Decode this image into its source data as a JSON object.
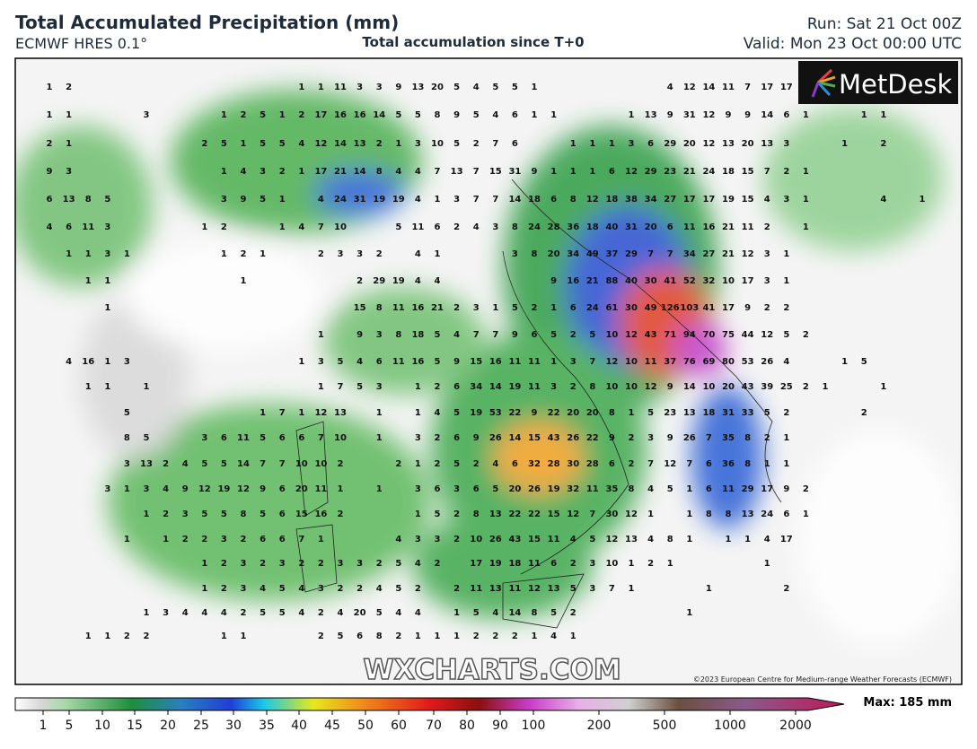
{
  "header": {
    "title": "Total Accumulated Precipitation (mm)",
    "model": "ECMWF HRES 0.1°",
    "subtitle": "Total accumulation since T+0",
    "run": "Run: Sat 21 Oct 00Z",
    "valid": "Valid: Mon 23 Oct 00:00 UTC"
  },
  "logo": "MetDesk",
  "watermark": "WXCHARTS.COM",
  "copyright": "©2023 European Centre for Medium-range Weather Forecasts (ECMWF)",
  "max_label": "Max: 185 mm",
  "colorbar": {
    "ticks": [
      1,
      5,
      10,
      15,
      20,
      25,
      30,
      35,
      40,
      45,
      50,
      60,
      70,
      80,
      90,
      100,
      200,
      500,
      1000,
      2000
    ]
  },
  "map_values": {
    "rows": [
      [
        1,
        2,
        null,
        null,
        null,
        null,
        null,
        null,
        null,
        null,
        null,
        null,
        null,
        1,
        1,
        11,
        3,
        3,
        9,
        13,
        20,
        5,
        4,
        5,
        5,
        1,
        null,
        null,
        null,
        null,
        null,
        null,
        4,
        12,
        14,
        11,
        7,
        17,
        17
      ],
      [
        1,
        1,
        null,
        null,
        null,
        3,
        null,
        null,
        null,
        1,
        2,
        5,
        1,
        2,
        17,
        16,
        16,
        14,
        5,
        5,
        8,
        9,
        5,
        4,
        6,
        1,
        1,
        null,
        null,
        null,
        1,
        13,
        9,
        31,
        12,
        9,
        9,
        14,
        6,
        1,
        null,
        null,
        1,
        1
      ],
      [
        2,
        1,
        null,
        null,
        null,
        null,
        null,
        null,
        2,
        5,
        1,
        5,
        5,
        4,
        12,
        14,
        13,
        2,
        1,
        3,
        10,
        5,
        2,
        7,
        6,
        null,
        null,
        1,
        1,
        1,
        3,
        6,
        29,
        20,
        12,
        13,
        20,
        13,
        3,
        null,
        null,
        1,
        null,
        2
      ],
      [
        9,
        3,
        null,
        null,
        null,
        null,
        null,
        null,
        null,
        1,
        4,
        3,
        2,
        1,
        17,
        21,
        14,
        8,
        4,
        4,
        7,
        13,
        7,
        15,
        31,
        9,
        1,
        1,
        1,
        6,
        12,
        29,
        23,
        21,
        24,
        18,
        15,
        7,
        2,
        1
      ],
      [
        6,
        13,
        8,
        5,
        null,
        null,
        null,
        null,
        null,
        3,
        9,
        5,
        1,
        null,
        4,
        24,
        31,
        19,
        19,
        4,
        1,
        3,
        7,
        7,
        14,
        18,
        6,
        8,
        12,
        18,
        38,
        34,
        27,
        17,
        17,
        19,
        15,
        4,
        3,
        1,
        null,
        null,
        null,
        4,
        null,
        1
      ],
      [
        4,
        6,
        11,
        3,
        null,
        null,
        null,
        null,
        1,
        2,
        null,
        null,
        1,
        4,
        7,
        10,
        null,
        null,
        5,
        11,
        6,
        2,
        4,
        3,
        8,
        24,
        28,
        36,
        18,
        40,
        31,
        20,
        6,
        11,
        16,
        21,
        11,
        2,
        null,
        1
      ],
      [
        null,
        1,
        1,
        3,
        1,
        null,
        null,
        null,
        null,
        1,
        2,
        1,
        null,
        null,
        2,
        3,
        3,
        2,
        null,
        4,
        1,
        null,
        null,
        null,
        3,
        8,
        20,
        34,
        49,
        37,
        29,
        7,
        7,
        34,
        27,
        21,
        12,
        3,
        1
      ],
      [
        null,
        null,
        1,
        1,
        null,
        null,
        null,
        null,
        null,
        null,
        1,
        null,
        null,
        null,
        null,
        null,
        2,
        29,
        19,
        4,
        4,
        null,
        null,
        null,
        null,
        null,
        9,
        16,
        21,
        88,
        40,
        30,
        41,
        52,
        32,
        10,
        17,
        3,
        1
      ],
      [
        null,
        null,
        null,
        1,
        null,
        null,
        null,
        null,
        null,
        null,
        null,
        null,
        null,
        null,
        null,
        null,
        15,
        8,
        11,
        16,
        21,
        2,
        3,
        1,
        5,
        2,
        1,
        6,
        24,
        61,
        30,
        49,
        126,
        103,
        41,
        17,
        9,
        2,
        2
      ],
      [
        null,
        null,
        null,
        null,
        null,
        null,
        null,
        null,
        null,
        null,
        null,
        null,
        null,
        null,
        1,
        null,
        9,
        3,
        8,
        18,
        5,
        4,
        7,
        7,
        9,
        6,
        5,
        2,
        5,
        10,
        12,
        43,
        71,
        94,
        70,
        75,
        44,
        12,
        5,
        2
      ],
      [
        null,
        4,
        16,
        1,
        3,
        null,
        null,
        null,
        null,
        null,
        null,
        null,
        null,
        1,
        3,
        5,
        4,
        6,
        11,
        16,
        5,
        9,
        15,
        16,
        11,
        11,
        1,
        3,
        7,
        12,
        10,
        11,
        37,
        76,
        69,
        80,
        53,
        26,
        4,
        null,
        null,
        1,
        5
      ],
      [
        null,
        null,
        1,
        1,
        null,
        1,
        null,
        null,
        null,
        null,
        null,
        null,
        null,
        null,
        1,
        7,
        5,
        3,
        null,
        1,
        2,
        6,
        34,
        14,
        19,
        11,
        3,
        2,
        8,
        10,
        10,
        12,
        9,
        14,
        10,
        20,
        43,
        39,
        25,
        2,
        1,
        null,
        null,
        1
      ],
      [
        null,
        null,
        null,
        null,
        5,
        null,
        null,
        null,
        null,
        null,
        null,
        1,
        7,
        1,
        12,
        13,
        null,
        1,
        null,
        1,
        4,
        5,
        19,
        53,
        22,
        9,
        22,
        20,
        20,
        8,
        1,
        5,
        23,
        13,
        18,
        31,
        33,
        5,
        2,
        null,
        null,
        null,
        2
      ],
      [
        null,
        null,
        null,
        null,
        8,
        5,
        null,
        null,
        3,
        6,
        11,
        5,
        6,
        6,
        7,
        10,
        null,
        1,
        null,
        3,
        2,
        6,
        9,
        26,
        14,
        15,
        43,
        26,
        22,
        9,
        2,
        3,
        9,
        26,
        7,
        35,
        8,
        2,
        1
      ],
      [
        null,
        null,
        null,
        null,
        3,
        13,
        2,
        4,
        5,
        5,
        14,
        7,
        7,
        10,
        10,
        2,
        null,
        null,
        2,
        1,
        2,
        5,
        2,
        4,
        6,
        32,
        28,
        30,
        28,
        6,
        2,
        7,
        12,
        7,
        6,
        36,
        8,
        1,
        1
      ],
      [
        null,
        null,
        null,
        3,
        1,
        3,
        4,
        9,
        12,
        19,
        12,
        9,
        6,
        20,
        11,
        1,
        null,
        1,
        null,
        3,
        6,
        3,
        6,
        5,
        20,
        26,
        19,
        32,
        11,
        35,
        8,
        4,
        5,
        1,
        6,
        11,
        29,
        17,
        9,
        2
      ],
      [
        null,
        null,
        null,
        null,
        null,
        1,
        2,
        3,
        5,
        5,
        8,
        5,
        6,
        15,
        16,
        2,
        null,
        null,
        null,
        1,
        5,
        2,
        8,
        13,
        22,
        22,
        15,
        12,
        7,
        30,
        12,
        1,
        null,
        1,
        8,
        8,
        13,
        24,
        6,
        1
      ],
      [
        null,
        null,
        null,
        null,
        1,
        null,
        1,
        2,
        2,
        3,
        2,
        6,
        6,
        7,
        1,
        null,
        null,
        null,
        4,
        3,
        3,
        2,
        10,
        26,
        43,
        15,
        11,
        4,
        5,
        12,
        13,
        4,
        8,
        1,
        null,
        1,
        1,
        4,
        17
      ],
      [
        null,
        null,
        null,
        null,
        null,
        null,
        null,
        null,
        1,
        2,
        3,
        2,
        3,
        2,
        2,
        3,
        3,
        2,
        5,
        4,
        2,
        null,
        17,
        19,
        18,
        11,
        6,
        2,
        3,
        10,
        1,
        2,
        1,
        null,
        null,
        null,
        null,
        1
      ],
      [
        null,
        null,
        null,
        null,
        null,
        null,
        null,
        null,
        1,
        2,
        3,
        4,
        5,
        4,
        3,
        2,
        2,
        4,
        5,
        2,
        null,
        2,
        11,
        13,
        11,
        12,
        13,
        5,
        3,
        7,
        1,
        null,
        null,
        null,
        1,
        null,
        null,
        null,
        2
      ],
      [
        null,
        null,
        null,
        null,
        null,
        1,
        3,
        4,
        4,
        4,
        2,
        5,
        5,
        4,
        2,
        4,
        20,
        5,
        4,
        4,
        null,
        1,
        5,
        4,
        14,
        8,
        5,
        2,
        null,
        null,
        null,
        null,
        null,
        1
      ],
      [
        null,
        null,
        1,
        1,
        2,
        2,
        null,
        null,
        null,
        1,
        1,
        null,
        null,
        null,
        2,
        5,
        6,
        8,
        2,
        1,
        1,
        1,
        2,
        2,
        2,
        1,
        4,
        1
      ]
    ]
  }
}
